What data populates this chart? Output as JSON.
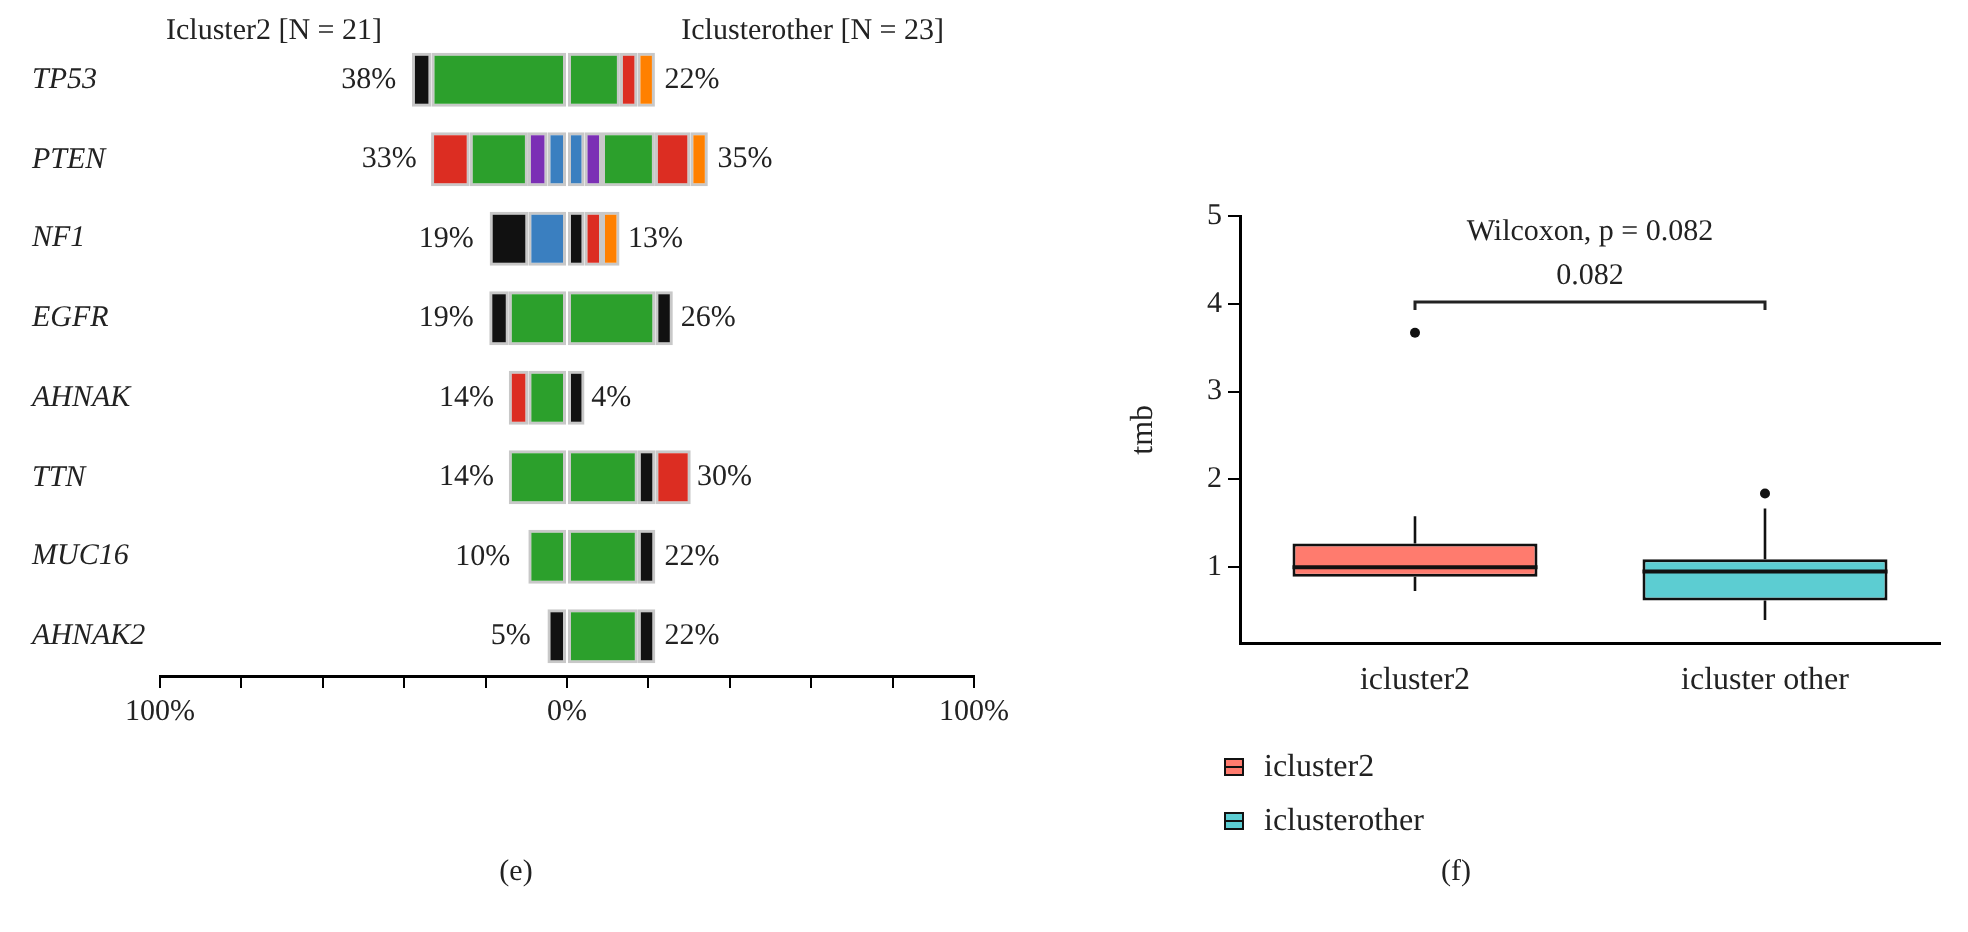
{
  "chart_data": [
    {
      "type": "bar",
      "orientation": "horizontal",
      "stacked": true,
      "categories": [
        "TP53",
        "PTEN",
        "NF1",
        "EGFR",
        "AHNAK",
        "TTN",
        "MUC16",
        "AHNAK2"
      ],
      "xlim": [
        -100,
        100
      ],
      "xticks": [
        {
          "value": -100,
          "label": "100%"
        },
        {
          "value": -80,
          "label": null
        },
        {
          "value": -60,
          "label": null
        },
        {
          "value": -40,
          "label": null
        },
        {
          "value": -20,
          "label": null
        },
        {
          "value": 0,
          "label": "0%"
        },
        {
          "value": 20,
          "label": null
        },
        {
          "value": 40,
          "label": null
        },
        {
          "value": 60,
          "label": null
        },
        {
          "value": 80,
          "label": null
        },
        {
          "value": 100,
          "label": "100%"
        }
      ],
      "series": [
        {
          "values": [
            -33.3,
            -4.8,
            -9.5,
            -14.3,
            -9.5,
            -14.3,
            -9.5,
            -4.8
          ],
          "colors": [
            "#2ca02c",
            "#3a7fc0",
            "#3a7fc0",
            "#2ca02c",
            "#2ca02c",
            "#2ca02c",
            "#2ca02c",
            "#111111"
          ]
        },
        {
          "values": [
            -4.8,
            -4.8,
            -9.5,
            -4.8,
            -4.8,
            null,
            null,
            null
          ],
          "colors": [
            "#111111",
            "#7b2fb5",
            "#111111",
            "#111111",
            "#dc2d22",
            "#111111",
            "#111111",
            "#111111"
          ]
        },
        {
          "values": [
            null,
            -14.3,
            null,
            null,
            null,
            null,
            null,
            null
          ],
          "colors": [
            "#2ca02c",
            "#2ca02c",
            "#2ca02c",
            "#2ca02c",
            "#2ca02c",
            "#2ca02c",
            "#2ca02c",
            "#2ca02c"
          ]
        },
        {
          "values": [
            null,
            -9.5,
            null,
            null,
            null,
            null,
            null,
            null
          ],
          "colors": [
            "#dc2d22",
            "#dc2d22",
            "#dc2d22",
            "#dc2d22",
            "#dc2d22",
            "#dc2d22",
            "#dc2d22",
            "#dc2d22"
          ]
        },
        {
          "values": [
            13.0,
            4.3,
            4.3,
            21.7,
            4.3,
            17.4,
            17.4,
            17.4
          ],
          "colors": [
            "#2ca02c",
            "#3a7fc0",
            "#111111",
            "#2ca02c",
            "#111111",
            "#2ca02c",
            "#2ca02c",
            "#2ca02c"
          ]
        },
        {
          "values": [
            4.3,
            4.3,
            4.3,
            4.3,
            null,
            4.3,
            4.3,
            4.3
          ],
          "colors": [
            "#dc2d22",
            "#7b2fb5",
            "#dc2d22",
            "#111111",
            "#111111",
            "#111111",
            "#111111",
            "#111111"
          ]
        },
        {
          "values": [
            4.3,
            13.0,
            4.3,
            null,
            null,
            8.7,
            null,
            null
          ],
          "colors": [
            "#ff8000",
            "#2ca02c",
            "#ff8000",
            "#dc2d22",
            "#dc2d22",
            "#dc2d22",
            "#dc2d22",
            "#dc2d22"
          ]
        },
        {
          "values": [
            null,
            8.7,
            null,
            null,
            null,
            null,
            null,
            null
          ],
          "colors": [
            "#dc2d22",
            "#dc2d22",
            "#dc2d22",
            "#dc2d22",
            "#dc2d22",
            "#dc2d22",
            "#dc2d22",
            "#dc2d22"
          ]
        },
        {
          "values": [
            null,
            4.3,
            null,
            null,
            null,
            null,
            null,
            null
          ],
          "colors": [
            "#ff8000",
            "#ff8000",
            "#ff8000",
            "#ff8000",
            "#ff8000",
            "#ff8000",
            "#ff8000",
            "#ff8000"
          ]
        }
      ],
      "annotations": [
        "Icluster2 [N = 21]",
        "Iclusterother [N = 23]",
        "(e)",
        {
          "text": "38%",
          "x": -38,
          "y": "TP53"
        },
        {
          "text": "22%",
          "x": 22,
          "y": "TP53"
        },
        {
          "text": "33%",
          "x": -33,
          "y": "PTEN"
        },
        {
          "text": "35%",
          "x": 35,
          "y": "PTEN"
        },
        {
          "text": "19%",
          "x": -19,
          "y": "NF1"
        },
        {
          "text": "13%",
          "x": 13,
          "y": "NF1"
        },
        {
          "text": "19%",
          "x": -19,
          "y": "EGFR"
        },
        {
          "text": "26%",
          "x": 26,
          "y": "EGFR"
        },
        {
          "text": "14%",
          "x": -14,
          "y": "AHNAK"
        },
        {
          "text": "4%",
          "x": 4,
          "y": "AHNAK"
        },
        {
          "text": "14%",
          "x": -14,
          "y": "TTN"
        },
        {
          "text": "30%",
          "x": 30,
          "y": "TTN"
        },
        {
          "text": "10%",
          "x": -10,
          "y": "MUC16"
        },
        {
          "text": "22%",
          "x": 22,
          "y": "MUC16"
        },
        {
          "text": "5%",
          "x": -5,
          "y": "AHNAK2"
        },
        {
          "text": "22%",
          "x": 22,
          "y": "AHNAK2"
        }
      ]
    },
    {
      "type": "box",
      "categories": [
        "icluster2",
        "icluster other"
      ],
      "ylabel": "tmb",
      "ylim": [
        0.13,
        5
      ],
      "yticks": [
        1,
        2,
        3,
        4,
        5
      ],
      "legend": "bottom left",
      "series": [
        {
          "name": "icluster2",
          "color": "#ff7b6e",
          "boxes": [
            {
              "low": 0.73,
              "q1": 0.89,
              "median": 1.0,
              "q3": 1.27,
              "high": 1.58,
              "outliers": [
                3.67
              ]
            },
            null
          ]
        },
        {
          "name": "iclusterother",
          "color": "#5ccdd2",
          "boxes": [
            null,
            {
              "low": 0.4,
              "q1": 0.62,
              "median": 0.95,
              "q3": 1.09,
              "high": 1.67,
              "outliers": [
                1.84
              ]
            }
          ]
        }
      ],
      "annotations": [
        "Wilcoxon, p = 0.082",
        "0.082",
        "(f)"
      ]
    }
  ]
}
